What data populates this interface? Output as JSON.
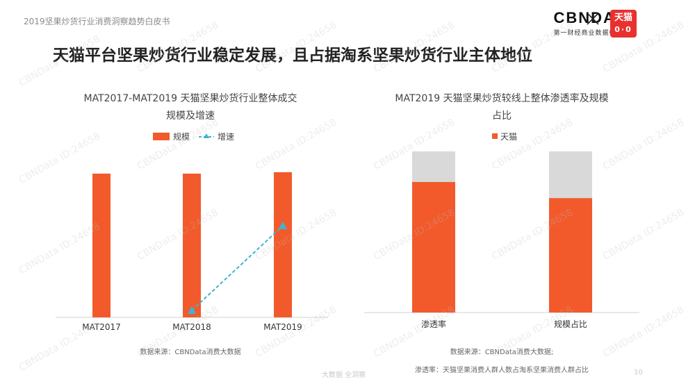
{
  "header": {
    "subtitle": "2019坚果炒货行业消费洞察趋势白皮书",
    "logo_text": "CBNDATA",
    "logo_sub": "第一财经商业数据中心",
    "badge_text": "天猫",
    "badge_sub": "0·0"
  },
  "page_title": "天猫平台坚果炒货行业稳定发展，且占据淘系坚果炒货行业主体地位",
  "footer": {
    "faint_text": "大数据   全洞察",
    "page_number": "10"
  },
  "colors": {
    "bar": "#f25a2b",
    "remainder": "#d9d9d9",
    "growth_line": "#3fb3d3",
    "axis": "#d0d0d0"
  },
  "watermark_text": "CBNData ID:24658",
  "chart_data": [
    {
      "type": "bar",
      "title": "MAT2017-MAT2019 天猫坚果炒货行业整体成交规模及增速",
      "title_lines": [
        "MAT2017-MAT2019 天猫坚果炒货行业整体成交",
        "规模及增速"
      ],
      "categories": [
        "MAT2017",
        "MAT2018",
        "MAT2019"
      ],
      "series": [
        {
          "name": "规模",
          "type": "bar",
          "values": [
            100,
            100,
            101
          ]
        },
        {
          "name": "增速",
          "type": "line",
          "values": [
            null,
            5,
            50
          ]
        }
      ],
      "legend": [
        "规模",
        "增速"
      ],
      "legend_position": "top",
      "ylim": [
        0,
        100
      ],
      "source": "数据来源：CBNData消费大数据"
    },
    {
      "type": "bar",
      "stacked": true,
      "title": "MAT2019 天猫坚果炒货较线上整体渗透率及规模占比",
      "title_lines": [
        "MAT2019 天猫坚果炒货较线上整体渗透率及规模",
        "占比"
      ],
      "categories": [
        "渗透率",
        "规模占比"
      ],
      "series": [
        {
          "name": "天猫",
          "values": [
            81,
            71
          ]
        }
      ],
      "legend": [
        "天猫"
      ],
      "legend_position": "top",
      "ylim": [
        0,
        100
      ],
      "source": "数据来源：CBNData消费大数据;",
      "note": "渗透率：天猫坚果消费人群人数占淘系坚果消费人群占比"
    }
  ]
}
